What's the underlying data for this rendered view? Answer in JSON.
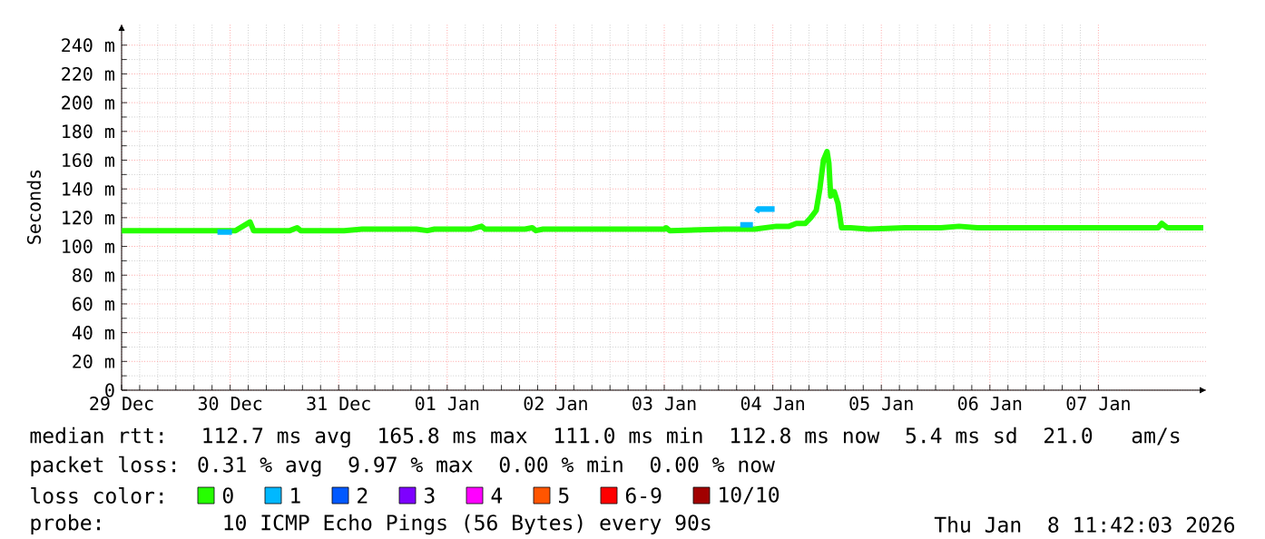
{
  "chart_data": {
    "type": "line",
    "ylabel": "Seconds",
    "legend_title": "loss color:",
    "legend": "bottom",
    "grid": true,
    "xlim": [
      "2025-12-29T00:00",
      "2026-01-08T00:00"
    ],
    "ylim": [
      0,
      255
    ],
    "xticks": [
      {
        "value": "2025-12-29",
        "label": "29 Dec"
      },
      {
        "value": "2025-12-30",
        "label": "30 Dec"
      },
      {
        "value": "2025-12-31",
        "label": "31 Dec"
      },
      {
        "value": "2026-01-01",
        "label": "01 Jan"
      },
      {
        "value": "2026-01-02",
        "label": "02 Jan"
      },
      {
        "value": "2026-01-03",
        "label": "03 Jan"
      },
      {
        "value": "2026-01-04",
        "label": "04 Jan"
      },
      {
        "value": "2026-01-05",
        "label": "05 Jan"
      },
      {
        "value": "2026-01-06",
        "label": "06 Jan"
      },
      {
        "value": "2026-01-07",
        "label": "07 Jan"
      }
    ],
    "yticks": [
      0,
      {
        "value": 20,
        "label": "20 m"
      },
      {
        "value": 40,
        "label": "40 m"
      },
      {
        "value": 60,
        "label": "60 m"
      },
      {
        "value": 80,
        "label": "80 m"
      },
      {
        "value": 100,
        "label": "100 m"
      },
      {
        "value": 120,
        "label": "120 m"
      },
      {
        "value": 140,
        "label": "140 m"
      },
      {
        "value": 160,
        "label": "160 m"
      },
      {
        "value": 180,
        "label": "180 m"
      },
      {
        "value": 200,
        "label": "200 m"
      },
      {
        "value": 220,
        "label": "220 m"
      },
      {
        "value": 240,
        "label": "240 m"
      }
    ],
    "series": [
      {
        "name": "0",
        "color": "#26ff00",
        "x": [
          "2025-12-29T00:00",
          "2025-12-29T12:00",
          "2025-12-29T21:12",
          "2025-12-30T01:12",
          "2025-12-30T04:24",
          "2025-12-30T05:12",
          "2025-12-30T13:12",
          "2025-12-30T14:48",
          "2025-12-30T15:36",
          "2025-12-31T01:12",
          "2025-12-31T05:12",
          "2025-12-31T17:12",
          "2025-12-31T19:36",
          "2025-12-31T21:12",
          "2026-01-01T05:12",
          "2026-01-01T07:36",
          "2026-01-01T08:24",
          "2026-01-01T13:12",
          "2026-01-01T17:12",
          "2026-01-01T18:48",
          "2026-01-01T19:36",
          "2026-01-01T21:12",
          "2026-01-02T05:12",
          "2026-01-03T00:00",
          "2026-01-03T00:24",
          "2026-01-03T01:12",
          "2026-01-03T13:12",
          "2026-01-03T17:12",
          "2026-01-03T19:12",
          "2026-01-03T20:00",
          "2026-01-04T00:48",
          "2026-01-04T03:36",
          "2026-01-04T05:12",
          "2026-01-04T07:12",
          "2026-01-04T08:24",
          "2026-01-04T09:36",
          "2026-01-04T10:24",
          "2026-01-04T11:12",
          "2026-01-04T12:00",
          "2026-01-04T12:24",
          "2026-01-04T12:48",
          "2026-01-04T13:36",
          "2026-01-04T14:24",
          "2026-01-04T15:12",
          "2026-01-04T17:12",
          "2026-01-04T21:12",
          "2026-01-05T05:12",
          "2026-01-05T13:12",
          "2026-01-05T17:12",
          "2026-01-05T21:12",
          "2026-01-06T13:12",
          "2026-01-06T21:12",
          "2026-01-07T13:12",
          "2026-01-07T14:00",
          "2026-01-07T15:12",
          "2026-01-07T23:12"
        ],
        "values": [
          111,
          111,
          111,
          111,
          117,
          111,
          111,
          113,
          111,
          111,
          112,
          112,
          111,
          112,
          112,
          114,
          112,
          112,
          112,
          113,
          111,
          112,
          112,
          112,
          113,
          111,
          112,
          112,
          112,
          112,
          114,
          114,
          116,
          116,
          120,
          125,
          140,
          160,
          166,
          158,
          135,
          138,
          130,
          113,
          113,
          112,
          113,
          113,
          114,
          113,
          113,
          113,
          113,
          116,
          113,
          113
        ]
      },
      {
        "name": "1",
        "color": "#00b8ff",
        "x": [
          "2025-12-29T21:12",
          "2025-12-30T00:24",
          "2026-01-02T04:00",
          "2026-01-03T16:48",
          "2026-01-03T19:36",
          "2026-01-03T20:00",
          "2026-01-03T20:24",
          "2026-01-03T20:48",
          "2026-01-04T00:24"
        ],
        "values": [
          110,
          110,
          null,
          115,
          115,
          null,
          124,
          126,
          126
        ]
      },
      {
        "name": "2",
        "color": "#0059ff"
      },
      {
        "name": "3",
        "color": "#7e00ff"
      },
      {
        "name": "4",
        "color": "#ff00ff"
      },
      {
        "name": "5",
        "color": "#ff5500"
      },
      {
        "name": "6-9",
        "color": "#ff0000"
      },
      {
        "name": "10/10",
        "color": "#a10000"
      }
    ],
    "annotations": [
      "median rtt:  112.7 ms avg  165.8 ms max  111.0 ms min  112.8 ms now  5.4 ms sd  21.0   am/s",
      "packet loss: 0.31 % avg  9.97 % max  0.00 % min  0.00 % now",
      "probe:       10 ICMP Echo Pings (56 Bytes) every 90s",
      "Thu Jan  8 11:42:03 2026"
    ]
  }
}
